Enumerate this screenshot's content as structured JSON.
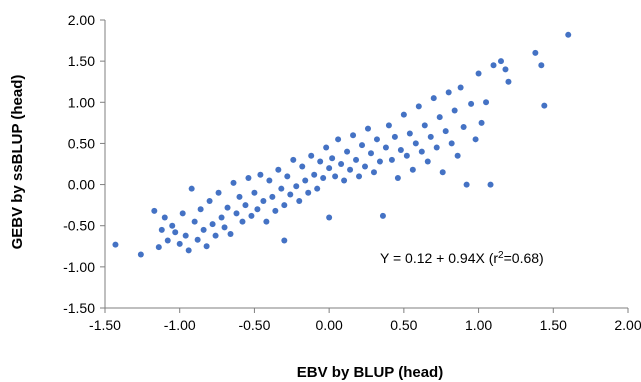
{
  "chart_data": {
    "type": "scatter",
    "title": "",
    "xlabel": "EBV by BLUP (head)",
    "ylabel": "GEBV by ssBLUP (head)",
    "xlim": [
      -1.5,
      2.0
    ],
    "ylim": [
      -1.5,
      2.0
    ],
    "x_ticks": [
      "-1.50",
      "-1.00",
      "-0.50",
      "0.00",
      "0.50",
      "1.00",
      "1.50",
      "2.00"
    ],
    "y_ticks": [
      "-1.50",
      "-1.00",
      "-0.50",
      "0.00",
      "0.50",
      "1.00",
      "1.50",
      "2.00"
    ],
    "grid": false,
    "legend": "none",
    "marker_color": "#4472C4",
    "annotation": {
      "prefix": "Y = 0.12 + 0.94X (r",
      "sup": "2",
      "suffix": "=0.68)"
    },
    "series": [
      {
        "points": [
          [
            -1.43,
            -0.73
          ],
          [
            -1.26,
            -0.85
          ],
          [
            -1.17,
            -0.32
          ],
          [
            -1.14,
            -0.76
          ],
          [
            -1.12,
            -0.55
          ],
          [
            -1.1,
            -0.4
          ],
          [
            -1.08,
            -0.68
          ],
          [
            -1.05,
            -0.5
          ],
          [
            -1.03,
            -0.58
          ],
          [
            -1.0,
            -0.72
          ],
          [
            -0.98,
            -0.35
          ],
          [
            -0.96,
            -0.62
          ],
          [
            -0.94,
            -0.8
          ],
          [
            -0.92,
            -0.05
          ],
          [
            -0.9,
            -0.45
          ],
          [
            -0.88,
            -0.67
          ],
          [
            -0.86,
            -0.3
          ],
          [
            -0.84,
            -0.55
          ],
          [
            -0.82,
            -0.75
          ],
          [
            -0.8,
            -0.2
          ],
          [
            -0.78,
            -0.48
          ],
          [
            -0.76,
            -0.62
          ],
          [
            -0.74,
            -0.1
          ],
          [
            -0.72,
            -0.4
          ],
          [
            -0.7,
            -0.52
          ],
          [
            -0.68,
            -0.28
          ],
          [
            -0.66,
            -0.6
          ],
          [
            -0.64,
            0.02
          ],
          [
            -0.62,
            -0.35
          ],
          [
            -0.6,
            -0.15
          ],
          [
            -0.58,
            -0.45
          ],
          [
            -0.56,
            -0.25
          ],
          [
            -0.54,
            0.08
          ],
          [
            -0.52,
            -0.38
          ],
          [
            -0.5,
            -0.1
          ],
          [
            -0.48,
            -0.3
          ],
          [
            -0.46,
            0.12
          ],
          [
            -0.44,
            -0.2
          ],
          [
            -0.42,
            -0.45
          ],
          [
            -0.4,
            0.05
          ],
          [
            -0.38,
            -0.15
          ],
          [
            -0.36,
            -0.32
          ],
          [
            -0.34,
            0.18
          ],
          [
            -0.32,
            -0.05
          ],
          [
            -0.3,
            -0.25
          ],
          [
            -0.3,
            -0.68
          ],
          [
            -0.28,
            0.1
          ],
          [
            -0.26,
            -0.12
          ],
          [
            -0.24,
            0.3
          ],
          [
            -0.22,
            -0.02
          ],
          [
            -0.2,
            -0.2
          ],
          [
            -0.18,
            0.22
          ],
          [
            -0.16,
            0.05
          ],
          [
            -0.14,
            -0.1
          ],
          [
            -0.12,
            0.35
          ],
          [
            -0.1,
            0.12
          ],
          [
            -0.08,
            -0.05
          ],
          [
            -0.06,
            0.28
          ],
          [
            -0.04,
            0.08
          ],
          [
            -0.02,
            0.45
          ],
          [
            0.0,
            0.2
          ],
          [
            0.0,
            -0.4
          ],
          [
            0.02,
            0.32
          ],
          [
            0.04,
            0.1
          ],
          [
            0.06,
            0.55
          ],
          [
            0.08,
            0.25
          ],
          [
            0.1,
            0.05
          ],
          [
            0.12,
            0.4
          ],
          [
            0.14,
            0.18
          ],
          [
            0.16,
            0.6
          ],
          [
            0.18,
            0.3
          ],
          [
            0.2,
            0.1
          ],
          [
            0.22,
            0.48
          ],
          [
            0.24,
            0.22
          ],
          [
            0.26,
            0.68
          ],
          [
            0.28,
            0.38
          ],
          [
            0.3,
            0.15
          ],
          [
            0.32,
            0.55
          ],
          [
            0.34,
            0.28
          ],
          [
            0.36,
            -0.38
          ],
          [
            0.38,
            0.45
          ],
          [
            0.4,
            0.72
          ],
          [
            0.42,
            0.3
          ],
          [
            0.44,
            0.58
          ],
          [
            0.46,
            0.08
          ],
          [
            0.48,
            0.42
          ],
          [
            0.5,
            0.85
          ],
          [
            0.52,
            0.35
          ],
          [
            0.54,
            0.62
          ],
          [
            0.56,
            0.18
          ],
          [
            0.58,
            0.5
          ],
          [
            0.6,
            0.95
          ],
          [
            0.62,
            0.4
          ],
          [
            0.64,
            0.72
          ],
          [
            0.66,
            0.28
          ],
          [
            0.68,
            0.58
          ],
          [
            0.7,
            1.05
          ],
          [
            0.72,
            0.45
          ],
          [
            0.74,
            0.82
          ],
          [
            0.76,
            0.15
          ],
          [
            0.78,
            0.65
          ],
          [
            0.8,
            1.12
          ],
          [
            0.82,
            0.5
          ],
          [
            0.84,
            0.9
          ],
          [
            0.86,
            0.35
          ],
          [
            0.88,
            1.18
          ],
          [
            0.9,
            0.7
          ],
          [
            0.92,
            0.0
          ],
          [
            0.95,
            0.98
          ],
          [
            0.98,
            0.55
          ],
          [
            1.0,
            1.35
          ],
          [
            1.02,
            0.75
          ],
          [
            1.05,
            1.0
          ],
          [
            1.08,
            0.0
          ],
          [
            1.1,
            1.45
          ],
          [
            1.15,
            1.5
          ],
          [
            1.18,
            1.4
          ],
          [
            1.2,
            1.25
          ],
          [
            1.38,
            1.6
          ],
          [
            1.42,
            1.45
          ],
          [
            1.44,
            0.96
          ],
          [
            1.6,
            1.82
          ]
        ]
      }
    ]
  }
}
